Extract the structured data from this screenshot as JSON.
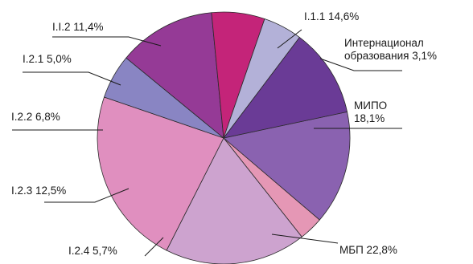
{
  "chart_data": {
    "type": "pie",
    "title": "",
    "start_angle_deg": 78,
    "direction": "clockwise",
    "slices": [
      {
        "name": "I.1.1",
        "value": 14.6,
        "value_label": "14,6%",
        "color": "#8a62b0"
      },
      {
        "name": "Интернационал образования",
        "name_lines": [
          "Интернационал",
          "образования"
        ],
        "value": 3.1,
        "value_label": "3,1%",
        "color": "#e597b5"
      },
      {
        "name": "МИПО",
        "value": 18.1,
        "value_label": "18,1%",
        "color": "#cda3cf"
      },
      {
        "name": "МБП",
        "value": 22.8,
        "value_label": "22,8%",
        "color": "#e08fbf"
      },
      {
        "name": "I.2.4",
        "value": 5.7,
        "value_label": "5,7%",
        "color": "#8985c3"
      },
      {
        "name": "I.2.3",
        "value": 12.5,
        "value_label": "12,5%",
        "color": "#953a96"
      },
      {
        "name": "I.2.2",
        "value": 6.8,
        "value_label": "6,8%",
        "color": "#c42479"
      },
      {
        "name": "I.2.1",
        "value": 5.0,
        "value_label": "5,0%",
        "color": "#b3b1d8"
      },
      {
        "name": "I.I.2",
        "value": 11.4,
        "value_label": "11,4%",
        "color": "#6a3b96"
      }
    ]
  }
}
